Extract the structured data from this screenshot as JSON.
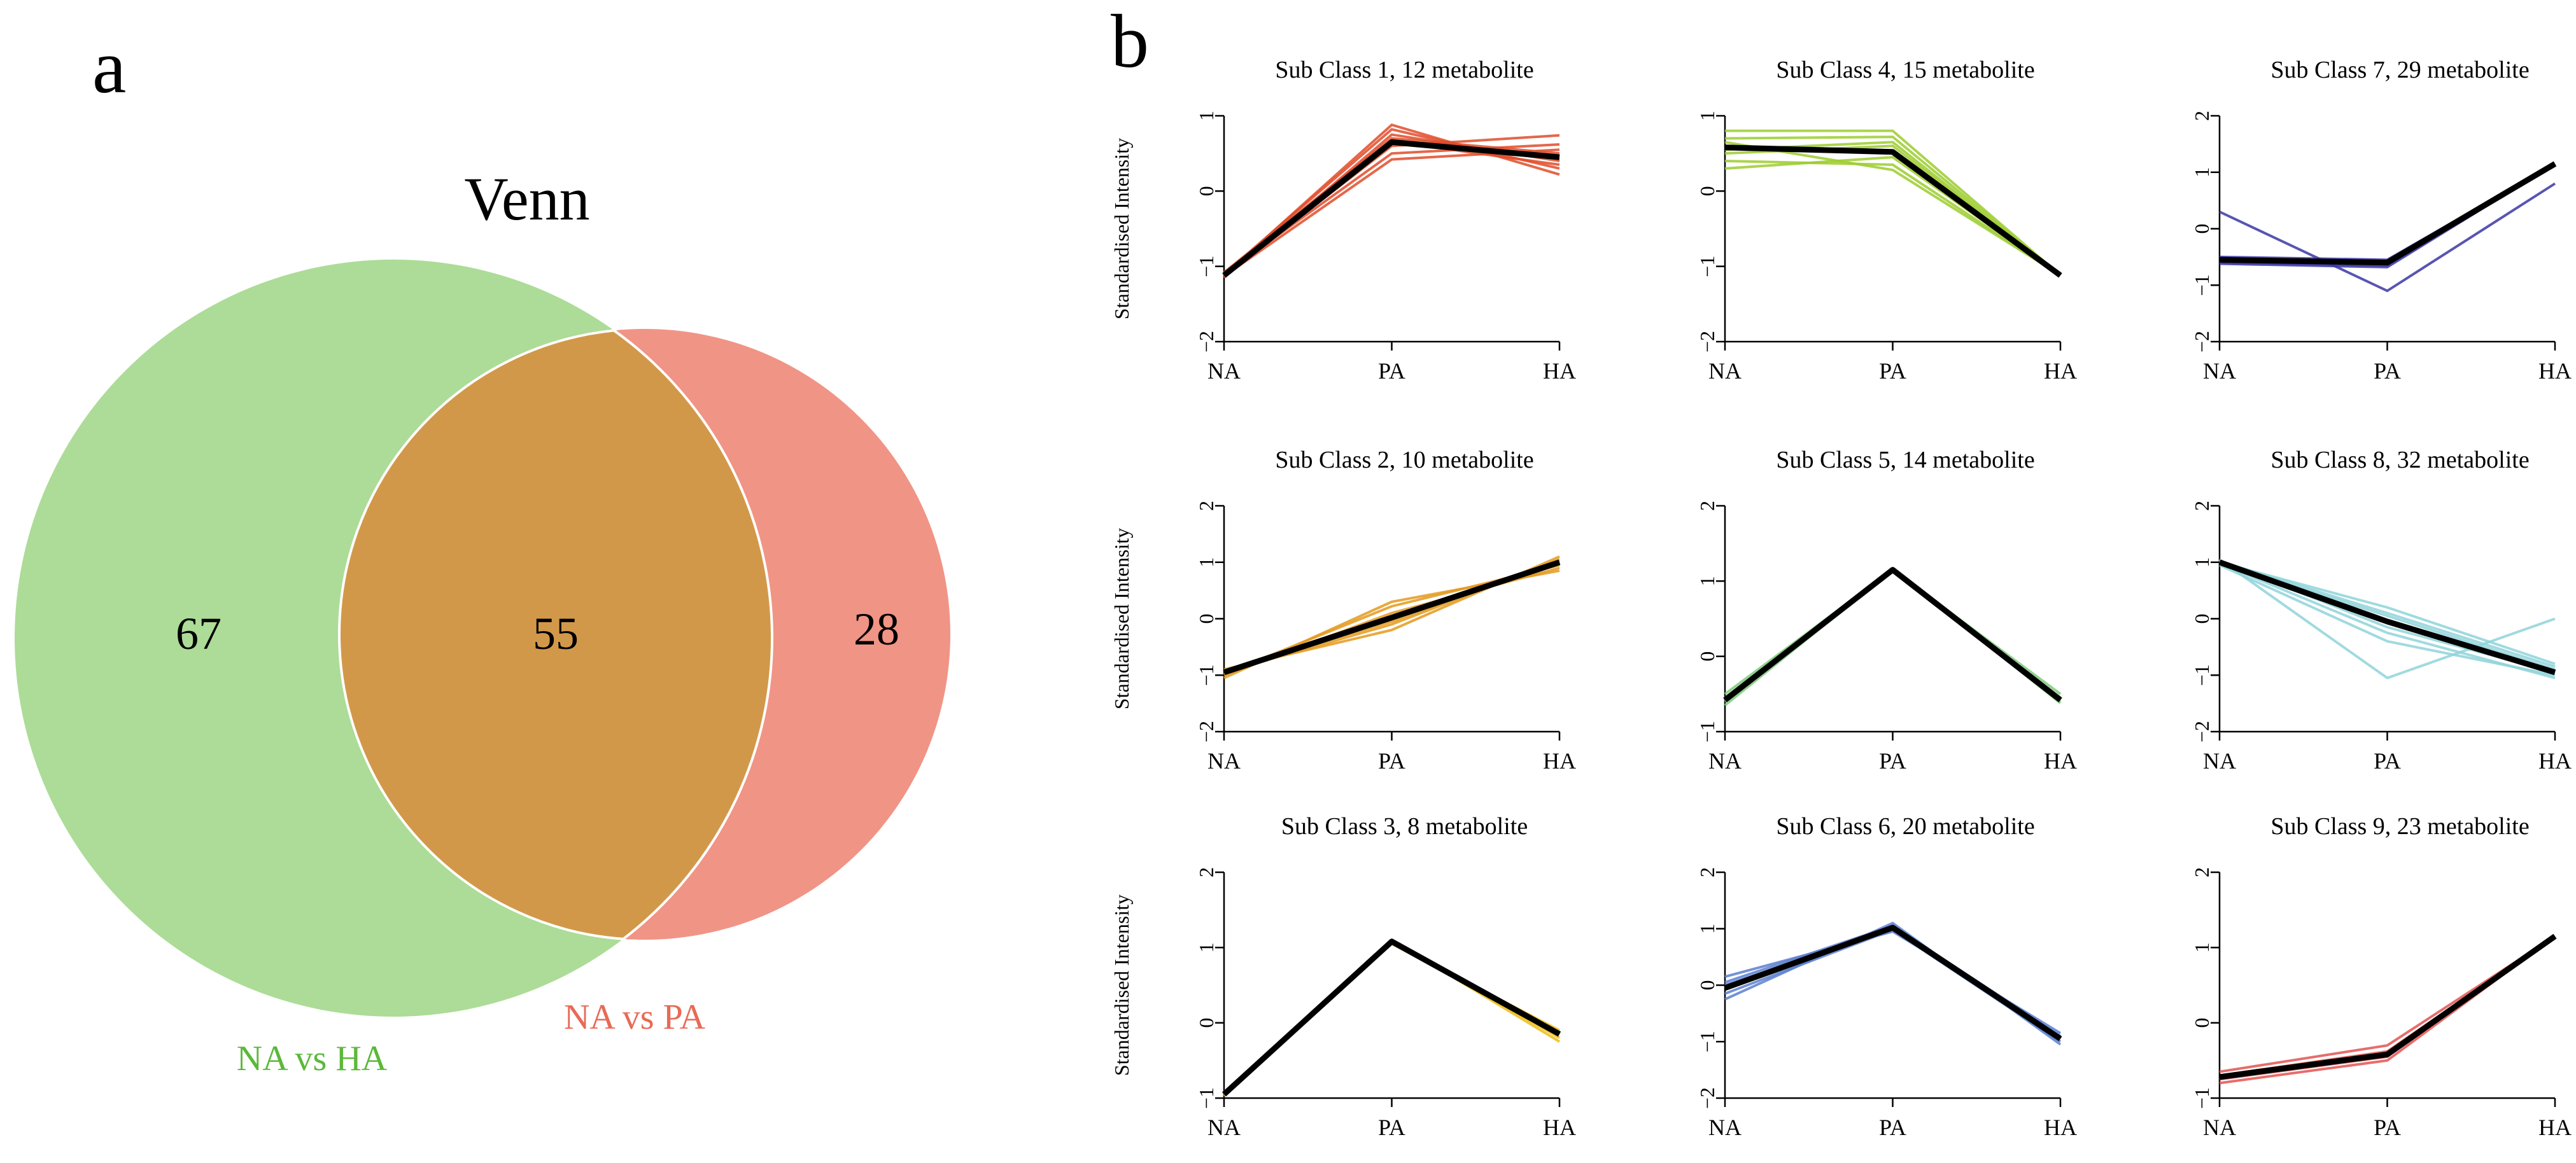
{
  "panel_a": {
    "letter": "a",
    "venn": {
      "title": "Venn",
      "sets": [
        {
          "label": "NA vs HA",
          "color": "#95d27a",
          "label_color": "#5cb83a",
          "only_count": "67"
        },
        {
          "label": "NA vs PA",
          "color": "#ea6b58",
          "label_color": "#e86a55",
          "only_count": "28"
        }
      ],
      "overlap_count": "55",
      "overlap_color": "#d2984a"
    }
  },
  "panel_b": {
    "letter": "b",
    "ylabel": "Standardised Intensity"
  },
  "chart_data": [
    {
      "type": "line",
      "title": "Sub Class 1, 12 metabolite",
      "color": "#e14c2a",
      "categories": [
        "NA",
        "PA",
        "HA"
      ],
      "ylim": [
        -2,
        1
      ],
      "yticks": [
        -2,
        -1,
        0,
        1
      ],
      "ytick_labels": [
        "−2",
        "−1",
        "0",
        "1"
      ],
      "ylabel": "Standardised Intensity",
      "mean": [
        -1.12,
        0.65,
        0.45
      ],
      "series": [
        [
          -1.12,
          0.88,
          0.22
        ],
        [
          -1.1,
          0.82,
          0.3
        ],
        [
          -1.15,
          0.75,
          0.4
        ],
        [
          -1.08,
          0.7,
          0.5
        ],
        [
          -1.12,
          0.6,
          0.74
        ],
        [
          -1.1,
          0.5,
          0.62
        ],
        [
          -1.13,
          0.42,
          0.55
        ],
        [
          -1.11,
          0.66,
          0.35
        ]
      ]
    },
    {
      "type": "line",
      "title": "Sub Class 4, 15 metabolite",
      "color": "#9ccc2e",
      "categories": [
        "NA",
        "PA",
        "HA"
      ],
      "ylim": [
        -2,
        1
      ],
      "yticks": [
        -2,
        -1,
        0,
        1
      ],
      "ytick_labels": [
        "−2",
        "−1",
        "0",
        "1"
      ],
      "ylabel": "",
      "mean": [
        0.58,
        0.52,
        -1.12
      ],
      "series": [
        [
          0.8,
          0.8,
          -1.12
        ],
        [
          0.7,
          0.72,
          -1.12
        ],
        [
          0.5,
          0.6,
          -1.12
        ],
        [
          0.4,
          0.35,
          -1.12
        ],
        [
          0.3,
          0.45,
          -1.12
        ],
        [
          0.65,
          0.28,
          -1.12
        ],
        [
          0.55,
          0.65,
          -1.12
        ]
      ]
    },
    {
      "type": "line",
      "title": "Sub Class 7, 29 metabolite",
      "color": "#3b37a5",
      "categories": [
        "NA",
        "PA",
        "HA"
      ],
      "ylim": [
        -2,
        2
      ],
      "yticks": [
        -2,
        -1,
        0,
        1,
        2
      ],
      "ytick_labels": [
        "−2",
        "−1",
        "0",
        "1",
        "2"
      ],
      "ylabel": "",
      "mean": [
        -0.55,
        -0.6,
        1.15
      ],
      "series": [
        [
          0.3,
          -1.1,
          0.8
        ],
        [
          -0.5,
          -0.55,
          1.15
        ],
        [
          -0.62,
          -0.68,
          1.15
        ],
        [
          -0.58,
          -0.62,
          1.15
        ],
        [
          -0.52,
          -0.58,
          1.15
        ],
        [
          -0.6,
          -0.65,
          1.15
        ]
      ]
    },
    {
      "type": "line",
      "title": "Sub Class 2, 10 metabolite",
      "color": "#e39a1d",
      "categories": [
        "NA",
        "PA",
        "HA"
      ],
      "ylim": [
        -2,
        2
      ],
      "yticks": [
        -2,
        -1,
        0,
        1,
        2
      ],
      "ytick_labels": [
        "−2",
        "−1",
        "0",
        "1",
        "2"
      ],
      "ylabel": "Standardised Intensity",
      "mean": [
        -0.95,
        0.02,
        1.0
      ],
      "series": [
        [
          -1.05,
          0.3,
          0.85
        ],
        [
          -0.9,
          -0.2,
          1.1
        ],
        [
          -1.0,
          0.1,
          0.9
        ],
        [
          -0.95,
          -0.1,
          1.05
        ],
        [
          -0.98,
          0.22,
          0.95
        ],
        [
          -0.92,
          -0.05,
          1.02
        ]
      ]
    },
    {
      "type": "line",
      "title": "Sub Class 5, 14 metabolite",
      "color": "#7dc97a",
      "categories": [
        "NA",
        "PA",
        "HA"
      ],
      "ylim": [
        -1,
        2
      ],
      "yticks": [
        -1,
        0,
        1,
        2
      ],
      "ytick_labels": [
        "−1",
        "0",
        "1",
        "2"
      ],
      "ylabel": "",
      "mean": [
        -0.58,
        1.15,
        -0.58
      ],
      "series": [
        [
          -0.5,
          1.15,
          -0.5
        ],
        [
          -0.65,
          1.15,
          -0.62
        ],
        [
          -0.55,
          1.15,
          -0.55
        ],
        [
          -0.6,
          1.15,
          -0.6
        ]
      ]
    },
    {
      "type": "line",
      "title": "Sub Class 8, 32 metabolite",
      "color": "#8fd3d9",
      "categories": [
        "NA",
        "PA",
        "HA"
      ],
      "ylim": [
        -2,
        2
      ],
      "yticks": [
        -2,
        -1,
        0,
        1,
        2
      ],
      "ytick_labels": [
        "−2",
        "−1",
        "0",
        "1",
        "2"
      ],
      "ylabel": "",
      "mean": [
        1.0,
        -0.05,
        -0.95
      ],
      "series": [
        [
          1.05,
          -1.05,
          0.0
        ],
        [
          1.0,
          0.2,
          -0.8
        ],
        [
          0.95,
          -0.4,
          -1.0
        ],
        [
          1.02,
          0.1,
          -0.85
        ],
        [
          0.98,
          -0.25,
          -1.05
        ],
        [
          1.0,
          0.05,
          -0.9
        ],
        [
          1.03,
          -0.15,
          -0.95
        ]
      ]
    },
    {
      "type": "line",
      "title": "Sub Class 3, 8 metabolite",
      "color": "#ecbd14",
      "categories": [
        "NA",
        "PA",
        "HA"
      ],
      "ylim": [
        -1,
        2
      ],
      "yticks": [
        -1,
        0,
        1,
        2
      ],
      "ytick_labels": [
        "−1",
        "0",
        "1",
        "2"
      ],
      "ylabel": "Standardised Intensity",
      "mean": [
        -0.95,
        1.08,
        -0.15
      ],
      "series": [
        [
          -0.95,
          1.1,
          -0.25
        ],
        [
          -0.92,
          1.05,
          -0.1
        ],
        [
          -0.97,
          1.08,
          -0.2
        ],
        [
          -0.94,
          1.07,
          -0.12
        ]
      ]
    },
    {
      "type": "line",
      "title": "Sub Class 6, 20 metabolite",
      "color": "#5b7fd0",
      "categories": [
        "NA",
        "PA",
        "HA"
      ],
      "ylim": [
        -2,
        2
      ],
      "yticks": [
        -2,
        -1,
        0,
        1,
        2
      ],
      "ytick_labels": [
        "−2",
        "−1",
        "0",
        "1",
        "2"
      ],
      "ylabel": "",
      "mean": [
        -0.05,
        1.02,
        -0.95
      ],
      "series": [
        [
          0.15,
          0.95,
          -0.85
        ],
        [
          -0.25,
          1.1,
          -1.05
        ],
        [
          0.05,
          1.05,
          -0.9
        ],
        [
          -0.15,
          0.98,
          -1.0
        ],
        [
          0.0,
          1.0,
          -0.95
        ]
      ]
    },
    {
      "type": "line",
      "title": "Sub Class 9, 23 metabolite",
      "color": "#e25452",
      "categories": [
        "NA",
        "PA",
        "HA"
      ],
      "ylim": [
        -1,
        2
      ],
      "yticks": [
        -1,
        0,
        1,
        2
      ],
      "ytick_labels": [
        "−1",
        "0",
        "1",
        "2"
      ],
      "ylabel": "",
      "mean": [
        -0.72,
        -0.42,
        1.15
      ],
      "series": [
        [
          -0.65,
          -0.3,
          1.15
        ],
        [
          -0.8,
          -0.5,
          1.15
        ],
        [
          -0.7,
          -0.38,
          1.15
        ],
        [
          -0.75,
          -0.45,
          1.15
        ]
      ]
    }
  ]
}
